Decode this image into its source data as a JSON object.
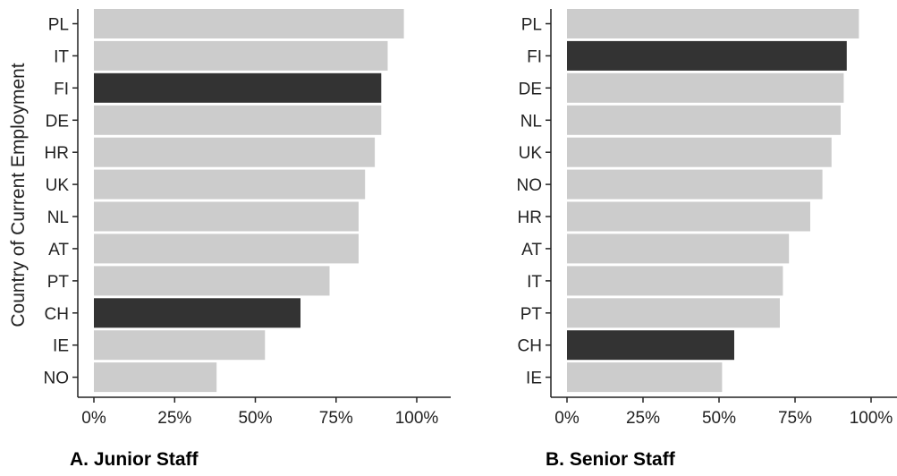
{
  "ylabel": "Country of Current Employment",
  "colors": {
    "default": "#cccccc",
    "highlight": "#333333",
    "axis": "#222222"
  },
  "chart_data": [
    {
      "type": "bar",
      "orientation": "horizontal",
      "title": "A. Junior Staff",
      "xlim": [
        0,
        1
      ],
      "xticks": [
        "0%",
        "25%",
        "50%",
        "75%",
        "100%"
      ],
      "categories": [
        "PL",
        "IT",
        "FI",
        "DE",
        "HR",
        "UK",
        "NL",
        "AT",
        "PT",
        "CH",
        "IE",
        "NO"
      ],
      "values": [
        0.96,
        0.91,
        0.89,
        0.89,
        0.87,
        0.84,
        0.82,
        0.82,
        0.73,
        0.64,
        0.53,
        0.38
      ],
      "highlighted": [
        "FI",
        "CH"
      ],
      "grid": false
    },
    {
      "type": "bar",
      "orientation": "horizontal",
      "title": "B. Senior Staff",
      "xlim": [
        0,
        1
      ],
      "xticks": [
        "0%",
        "25%",
        "50%",
        "75%",
        "100%"
      ],
      "categories": [
        "PL",
        "FI",
        "DE",
        "NL",
        "UK",
        "NO",
        "HR",
        "AT",
        "IT",
        "PT",
        "CH",
        "IE"
      ],
      "values": [
        0.96,
        0.92,
        0.91,
        0.9,
        0.87,
        0.84,
        0.8,
        0.73,
        0.71,
        0.7,
        0.55,
        0.51
      ],
      "highlighted": [
        "FI",
        "CH"
      ],
      "grid": false
    }
  ]
}
